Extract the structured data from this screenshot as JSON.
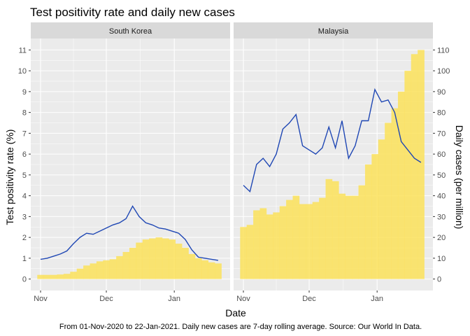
{
  "title": "Test positivity rate and daily new cases",
  "caption": "From 01-Nov-2020 to 22-Jan-2021. Daily new cases are 7-day rolling average. Source: Our World In Data.",
  "xlabel": "Date",
  "ylabel_left": "Test positivity rate (%)",
  "ylabel_right": "Daily cases (per million)",
  "colors": {
    "line": "#1f47b4",
    "bars": "#fce25a",
    "panel": "#ebebeb",
    "strip": "#d9d9d9",
    "grid": "#ffffff"
  },
  "chart_data": {
    "type": "bar",
    "facets": [
      "South Korea",
      "Malaysia"
    ],
    "x_ticks": [
      "Nov",
      "Dec",
      "Jan"
    ],
    "x_tick_positions": [
      0,
      30,
      61
    ],
    "xlim": [
      0,
      82
    ],
    "y_left_ticks": [
      0,
      1,
      2,
      3,
      4,
      5,
      6,
      7,
      8,
      9,
      10,
      11
    ],
    "y_right_ticks": [
      0,
      10,
      20,
      30,
      40,
      50,
      60,
      70,
      80,
      90,
      100,
      110
    ],
    "y_left_lim": [
      -0.55,
      11.55
    ],
    "y_right_lim": [
      -5.5,
      115.5
    ],
    "series": [
      {
        "facet": "South Korea",
        "x": [
          0,
          3,
          6,
          9,
          12,
          15,
          18,
          21,
          24,
          27,
          30,
          33,
          36,
          39,
          42,
          45,
          48,
          51,
          54,
          57,
          60,
          63,
          66,
          69,
          72,
          75,
          78,
          81
        ],
        "positivity_rate": [
          0.95,
          1.0,
          1.1,
          1.2,
          1.35,
          1.7,
          2.0,
          2.2,
          2.15,
          2.3,
          2.45,
          2.6,
          2.7,
          2.9,
          3.5,
          3.0,
          2.7,
          2.6,
          2.45,
          2.4,
          2.3,
          2.2,
          1.9,
          1.4,
          1.05,
          1.0,
          0.95,
          0.9
        ],
        "daily_cases": [
          2.0,
          2.0,
          2.0,
          2.2,
          2.5,
          3.5,
          5.0,
          6.5,
          7.5,
          8.5,
          9.0,
          9.5,
          11.0,
          13.0,
          15.0,
          17.5,
          19.0,
          19.5,
          20.0,
          19.5,
          19.0,
          17.0,
          15.0,
          12.0,
          10.0,
          9.0,
          8.0,
          7.5
        ]
      },
      {
        "facet": "Malaysia",
        "x": [
          0,
          3,
          6,
          9,
          12,
          15,
          18,
          21,
          24,
          27,
          30,
          33,
          36,
          39,
          42,
          45,
          48,
          51,
          54,
          57,
          60,
          63,
          66,
          69,
          72,
          75,
          78,
          81
        ],
        "positivity_rate": [
          4.5,
          4.2,
          5.5,
          5.8,
          5.4,
          6.0,
          7.2,
          7.5,
          7.9,
          6.4,
          6.2,
          6.0,
          6.3,
          7.3,
          6.3,
          7.6,
          5.8,
          6.4,
          7.6,
          7.6,
          9.1,
          8.5,
          8.6,
          8.0,
          6.6,
          6.2,
          5.8,
          5.6
        ],
        "daily_cases": [
          25,
          26,
          33,
          34,
          31,
          32,
          35,
          38,
          40,
          36,
          36,
          37,
          39,
          48,
          47,
          41,
          40,
          40,
          45,
          55,
          60,
          67,
          75,
          82,
          90,
          100,
          108,
          110
        ]
      }
    ]
  }
}
